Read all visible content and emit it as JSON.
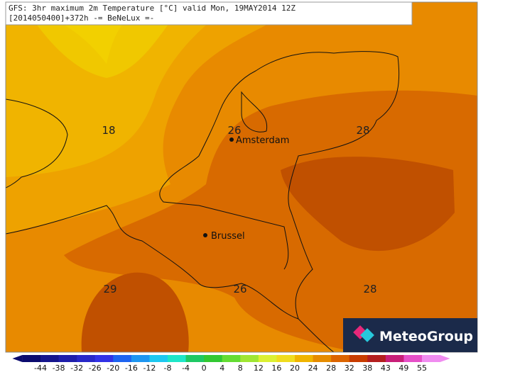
{
  "header": {
    "line1": "GFS: 3hr maximum 2m Temperature [°C] valid Mon, 19MAY2014 12Z",
    "line2": "[2014050400]+372h -= BeNeLux =-"
  },
  "contour_labels": [
    "18",
    "26",
    "28",
    "29",
    "26",
    "28"
  ],
  "cities": [
    "Amsterdam",
    "Brussel"
  ],
  "logo": "MeteoGroup",
  "colorbar": {
    "labels": [
      "-44",
      "-38",
      "-32",
      "-26",
      "-20",
      "-16",
      "-12",
      "-8",
      "-4",
      "0",
      "4",
      "8",
      "12",
      "16",
      "20",
      "24",
      "28",
      "32",
      "38",
      "43",
      "49",
      "55"
    ],
    "colors": [
      "#0a0a6e",
      "#14148c",
      "#1e1eaa",
      "#2828c8",
      "#3232e6",
      "#1e64f0",
      "#1e96f0",
      "#1ec8f0",
      "#1ee6c8",
      "#1ec864",
      "#32c832",
      "#64dc32",
      "#a0e632",
      "#dcf032",
      "#f0dc1e",
      "#f0b400",
      "#e68c00",
      "#dc6400",
      "#c83c00",
      "#b41e1e",
      "#c81e78",
      "#e650c8",
      "#f08cf0"
    ]
  }
}
